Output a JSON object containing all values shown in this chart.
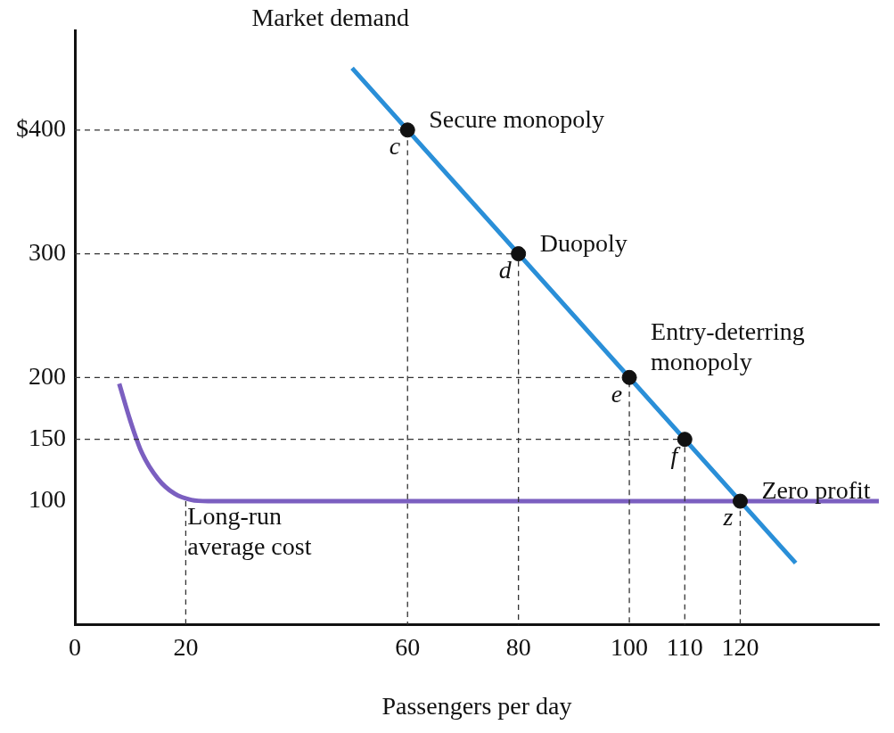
{
  "chart_data": {
    "type": "line",
    "xlabel": "Passengers per day",
    "xlim": [
      0,
      145
    ],
    "ylim": [
      0,
      480
    ],
    "xticks": [
      0,
      20,
      60,
      80,
      100,
      110,
      120
    ],
    "yticks": [
      100,
      150,
      200,
      300,
      {
        "value": 400,
        "label": "$400"
      }
    ],
    "grid": false,
    "legend": false,
    "series": [
      {
        "type": "line",
        "line_style": "dashed",
        "color": "#333333",
        "x": [
          0,
          60,
          60
        ],
        "values": [
          400,
          400,
          0
        ]
      },
      {
        "type": "line",
        "line_style": "dashed",
        "color": "#333333",
        "x": [
          0,
          80,
          80
        ],
        "values": [
          300,
          300,
          0
        ]
      },
      {
        "type": "line",
        "line_style": "dashed",
        "color": "#333333",
        "x": [
          0,
          100,
          100
        ],
        "values": [
          200,
          200,
          0
        ]
      },
      {
        "type": "line",
        "line_style": "dashed",
        "color": "#333333",
        "x": [
          0,
          110,
          110
        ],
        "values": [
          150,
          150,
          0
        ]
      },
      {
        "type": "line",
        "line_style": "dashed",
        "color": "#333333",
        "x": [
          120,
          120
        ],
        "values": [
          100,
          0
        ]
      },
      {
        "type": "line",
        "line_style": "dashed",
        "color": "#333333",
        "x": [
          20,
          20
        ],
        "values": [
          100,
          0
        ]
      },
      {
        "type": "line",
        "line_style": "solid",
        "color": "#2a8fd8",
        "x": [
          50,
          130
        ],
        "values": [
          450,
          50
        ]
      },
      {
        "type": "line",
        "line_style": "solid",
        "color": "#7b5fc0",
        "x": [
          8,
          10,
          12,
          15,
          18,
          21,
          24,
          145
        ],
        "values": [
          195,
          165,
          140,
          118,
          106,
          101,
          100,
          100
        ]
      },
      {
        "type": "scatter",
        "marker": "circle",
        "color": "#111111",
        "x": [
          60,
          80,
          100,
          110,
          120
        ],
        "values": [
          400,
          300,
          200,
          150,
          100
        ]
      }
    ],
    "annotations": [
      "Market demand",
      {
        "text": "Secure monopoly",
        "x": 60,
        "y": 400
      },
      {
        "text": "c",
        "x": 60,
        "y": 400
      },
      {
        "text": "Duopoly",
        "x": 80,
        "y": 300
      },
      {
        "text": "d",
        "x": 80,
        "y": 300
      },
      {
        "text": "Entry-deterring monopoly",
        "x": 100,
        "y": 200
      },
      {
        "text": "e",
        "x": 100,
        "y": 200
      },
      {
        "text": "f",
        "x": 110,
        "y": 150
      },
      {
        "text": "Zero profit",
        "x": 120,
        "y": 100
      },
      {
        "text": "z",
        "x": 120,
        "y": 100
      },
      "Long-run average cost"
    ]
  }
}
